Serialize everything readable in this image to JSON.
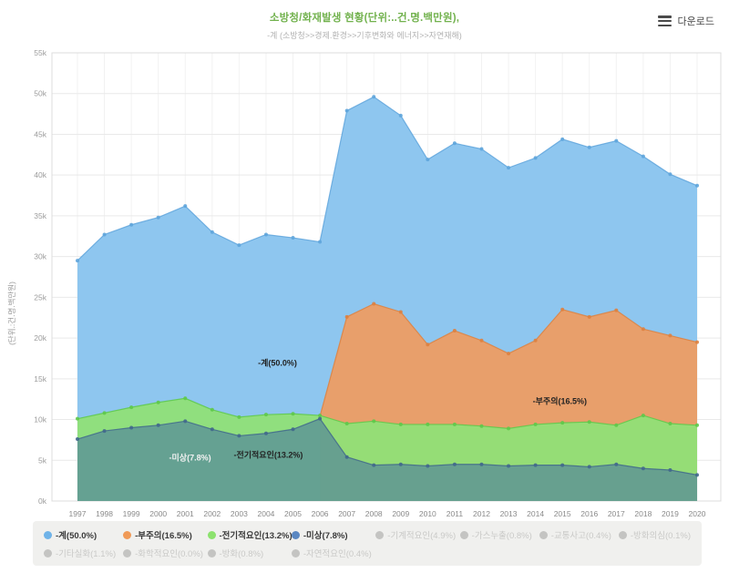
{
  "header": {
    "title": "소방청/화재발생 현황(단위:..건.명.백만원),",
    "subtitle": "-계 (소방청>>경제.환경>>기후변화와 에너지>>자연재해)",
    "download_label": "다운로드"
  },
  "chart_data": {
    "type": "area",
    "title": "소방청/화재발생 현황(단위:..건.명.백만원)",
    "subtitle": "-계 (소방청>>경제.환경>>기후변화와 에너지>>자연재해)",
    "ylabel": "(단위.:건.명.백만원)",
    "unit": "values in thousands (k)",
    "ylim": [
      0,
      55
    ],
    "y_tick_step": 5,
    "y_tick_suffix": "k",
    "grid": true,
    "legend_position": "bottom",
    "x": [
      "1997",
      "1998",
      "1999",
      "2000",
      "2001",
      "2002",
      "2003",
      "2004",
      "2005",
      "2006",
      "2007",
      "2008",
      "2009",
      "2010",
      "2011",
      "2012",
      "2013",
      "2014",
      "2015",
      "2016",
      "2017",
      "2018",
      "2019",
      "2020"
    ],
    "series": [
      {
        "name": "-계(50.0%)",
        "color": "#8ec6ef",
        "line": "#5fa5dc",
        "opacity": 1,
        "values": [
          29.5,
          32.7,
          33.9,
          34.8,
          36.2,
          33.0,
          31.4,
          32.7,
          32.3,
          31.8,
          47.9,
          49.6,
          47.3,
          41.9,
          43.9,
          43.2,
          40.9,
          42.1,
          44.4,
          43.4,
          44.2,
          42.3,
          40.1,
          38.7
        ]
      },
      {
        "name": "-부주의(16.5%)",
        "color": "#eb9e66",
        "line": "#dd8140",
        "opacity": 0.97,
        "values": [
          null,
          null,
          null,
          null,
          null,
          null,
          null,
          null,
          null,
          10.4,
          22.6,
          24.2,
          23.2,
          19.2,
          20.9,
          19.7,
          18.1,
          19.7,
          23.5,
          22.6,
          23.4,
          21.1,
          20.3,
          19.5
        ]
      },
      {
        "name": "-전기적요인(13.2%)",
        "color": "#90e077",
        "line": "#5ec94a",
        "opacity": 0.95,
        "values": [
          10.1,
          10.8,
          11.5,
          12.1,
          12.6,
          11.2,
          10.3,
          10.6,
          10.7,
          10.5,
          9.5,
          9.8,
          9.4,
          9.4,
          9.4,
          9.2,
          8.9,
          9.4,
          9.6,
          9.7,
          9.3,
          10.5,
          9.5,
          9.3
        ]
      },
      {
        "name": "-미상(7.8%)",
        "color": "#4a7a9e",
        "line": "#41688c",
        "opacity": 0.62,
        "values": [
          7.6,
          8.6,
          9.0,
          9.3,
          9.8,
          8.8,
          8.0,
          8.3,
          8.8,
          10.1,
          5.4,
          4.4,
          4.5,
          4.3,
          4.5,
          4.5,
          4.3,
          4.4,
          4.4,
          4.2,
          4.5,
          4.0,
          3.8,
          3.2
        ]
      }
    ],
    "annotations": [
      {
        "text": "-계(50.0%)",
        "year": 2003.7,
        "value": 16.6,
        "color": "#222222"
      },
      {
        "text": "-부주의(16.5%)",
        "year": 2013.9,
        "value": 11.9,
        "color": "#222222"
      },
      {
        "text": "-전기적요인(13.2%)",
        "year": 2002.8,
        "value": 5.3,
        "color": "#222222"
      },
      {
        "text": "-미상(7.8%)",
        "year": 2000.4,
        "value": 5.0,
        "color": "#f2f2f2"
      }
    ]
  },
  "legend": {
    "items": [
      {
        "label": "-계(50.0%)",
        "color": "#6fb3e8",
        "active": true
      },
      {
        "label": "-부주의(16.5%)",
        "color": "#f09a57",
        "active": true
      },
      {
        "label": "-전기적요인(13.2%)",
        "color": "#8ce26e",
        "active": true
      },
      {
        "label": "-미상(7.8%)",
        "color": "#5b88c2",
        "active": true
      },
      {
        "label": "-기계적요인(4.9%)",
        "color": "#c4c4c2",
        "active": false
      },
      {
        "label": "-가스누출(0.8%)",
        "color": "#c4c4c2",
        "active": false
      },
      {
        "label": "-교통사고(0.4%)",
        "color": "#c4c4c2",
        "active": false
      },
      {
        "label": "-방화의심(0.1%)",
        "color": "#c4c4c2",
        "active": false
      },
      {
        "label": "-기타실화(1.1%)",
        "color": "#c4c4c2",
        "active": false
      },
      {
        "label": "-화학적요인(0.0%)",
        "color": "#c4c4c2",
        "active": false
      },
      {
        "label": "-방화(0.8%)",
        "color": "#c4c4c2",
        "active": false
      },
      {
        "label": "-자연적요인(0.4%)",
        "color": "#c4c4c2",
        "active": false
      }
    ]
  }
}
